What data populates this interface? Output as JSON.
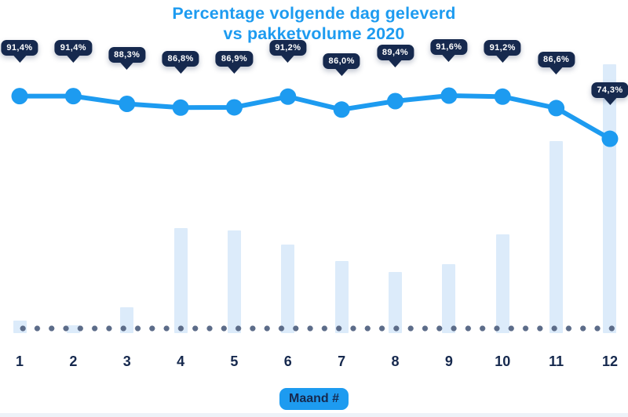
{
  "page": {
    "background": "#ffffff",
    "bottom_strip_color": "#edf2f8"
  },
  "title": {
    "line1": "Percentage volgende dag geleverd",
    "line2": "vs pakketvolume 2020",
    "color": "#1d9bf0"
  },
  "colors": {
    "accent_blue": "#1d9bf0",
    "navy": "#16294e",
    "bar_fill": "#dcebfa",
    "baseline_dot": "#5c6c89",
    "tooltip_text": "#ffffff"
  },
  "chart_data": {
    "type": "combo",
    "title": "Percentage volgende dag geleverd vs pakketvolume 2020",
    "xlabel": "Maand #",
    "ylabel": "",
    "categories": [
      "1",
      "2",
      "3",
      "4",
      "5",
      "6",
      "7",
      "8",
      "9",
      "10",
      "11",
      "12"
    ],
    "legend": false,
    "grid": false,
    "y_axis_shown": false,
    "baseline_style": "dotted",
    "series": [
      {
        "name": "Percentage volgende dag geleverd",
        "type": "line",
        "unit": "%",
        "color": "#1d9bf0",
        "values": [
          91.4,
          91.4,
          88.3,
          86.8,
          86.9,
          91.2,
          86.0,
          89.4,
          91.6,
          91.2,
          86.6,
          74.3
        ],
        "labels": [
          "91,4%",
          "91,4%",
          "88,3%",
          "86,8%",
          "86,9%",
          "91,2%",
          "86,0%",
          "89,4%",
          "91,6%",
          "91,2%",
          "86,6%",
          "74,3%"
        ]
      },
      {
        "name": "Pakketvolume 2020",
        "type": "bar",
        "unit": "relative volume (max = 100)",
        "color": "#dcebfa",
        "values": [
          4.7,
          2.9,
          9.6,
          39.1,
          38.2,
          32.9,
          26.8,
          22.7,
          25.7,
          36.7,
          71.4,
          100
        ]
      }
    ]
  }
}
